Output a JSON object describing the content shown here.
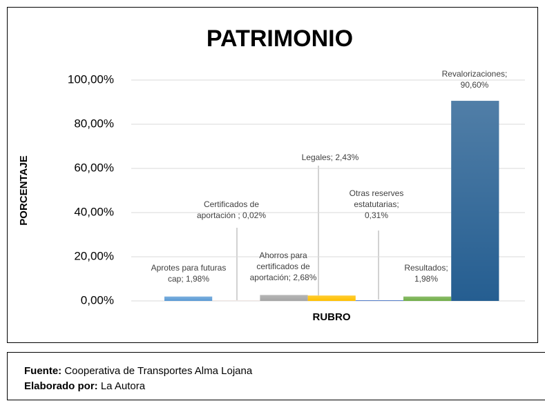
{
  "chart_data": {
    "type": "bar",
    "title": "PATRIMONIO",
    "x_label": "RUBRO",
    "y_label": "PORCENTAJE",
    "categories": [
      "RUBRO"
    ],
    "series": [
      {
        "name": "Aprotes para futuras cap",
        "color": "#5b9bd5",
        "values": [
          1.98
        ],
        "value_labels": [
          "Aprotes para futuras cap; 1,98%"
        ]
      },
      {
        "name": "Certificados de aportación ",
        "color": "#ed7d31",
        "values": [
          0.02
        ],
        "value_labels": [
          "Certificados de aportación ; 0,02%"
        ]
      },
      {
        "name": "Ahorros para certificados de aportación",
        "color": "#a5a5a5",
        "values": [
          2.68
        ],
        "value_labels": [
          "Ahorros para certificados de aportación; 2,68%"
        ]
      },
      {
        "name": "Legales",
        "color": "#ffc000",
        "values": [
          2.43
        ],
        "value_labels": [
          "Legales; 2,43%"
        ]
      },
      {
        "name": "Otras reserves estatutarias",
        "color": "#4472c4",
        "values": [
          0.31
        ],
        "value_labels": [
          "Otras reserves estatutarias; 0,31%"
        ]
      },
      {
        "name": "Resultados",
        "color": "#70ad47",
        "values": [
          1.98
        ],
        "value_labels": [
          "Resultados; 1,98%"
        ]
      },
      {
        "name": "Revalorizaciones",
        "color": "#255e91",
        "values": [
          90.6
        ],
        "value_labels": [
          "Revalorizaciones; 90,60%"
        ]
      }
    ],
    "ylim": [
      0,
      100
    ],
    "yticks": [
      {
        "value": 0,
        "label": "0,00%"
      },
      {
        "value": 20,
        "label": "20,00%"
      },
      {
        "value": 40,
        "label": "40,00%"
      },
      {
        "value": 60,
        "label": "60,00%"
      },
      {
        "value": 80,
        "label": "80,00%"
      },
      {
        "value": 100,
        "label": "100,00%"
      }
    ],
    "grid": true
  },
  "footer": {
    "source_label": "Fuente:",
    "source": "Cooperativa de Transportes Alma Lojana",
    "author_label": "Elaborado por:",
    "author": "La Autora"
  }
}
